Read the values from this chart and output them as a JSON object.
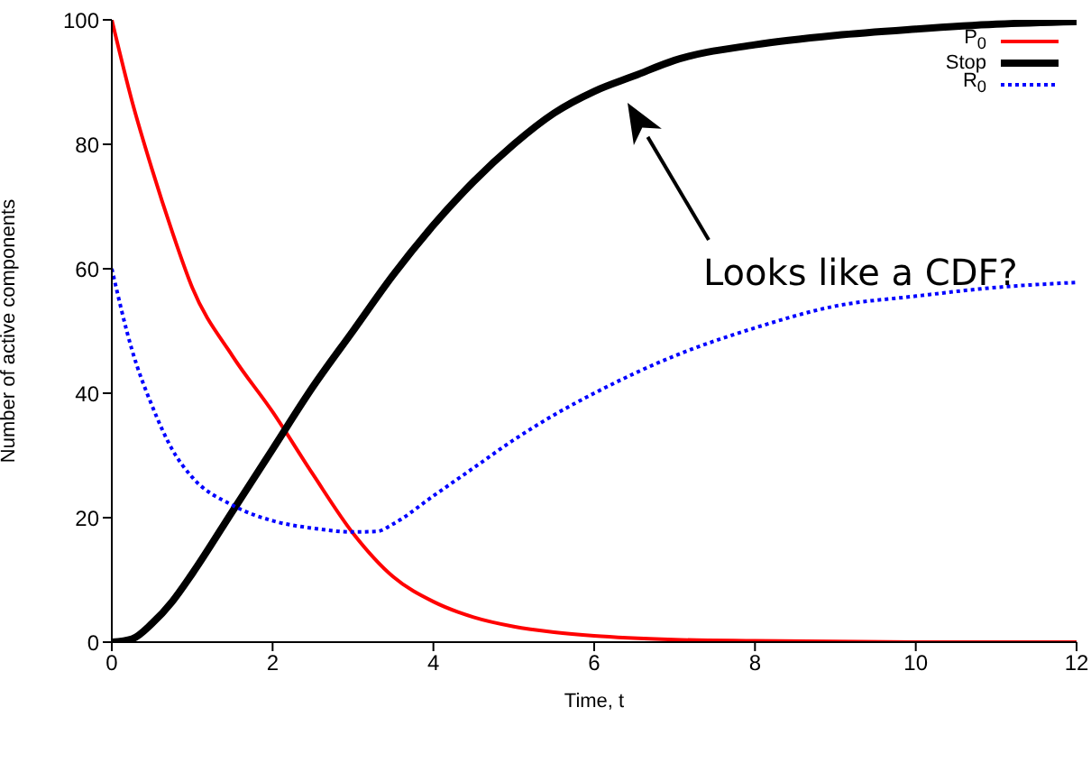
{
  "chart_data": {
    "type": "line",
    "xlabel": "Time, t",
    "ylabel": "Number of active components",
    "xlim": [
      0,
      12
    ],
    "xticks": [
      0,
      2,
      4,
      6,
      8,
      10,
      12
    ],
    "ylim": [
      0,
      100
    ],
    "yticks": [
      0,
      20,
      40,
      60,
      80,
      100
    ],
    "grid": false,
    "legend": "top right",
    "marker": "none",
    "annotations": [
      "Looks like a CDF?"
    ],
    "series": [
      {
        "name": "P$_{0}$",
        "color": "#ff0000",
        "line_style": "solid",
        "x": [
          0,
          0.25,
          0.5,
          0.75,
          1,
          1.5,
          2,
          2.5,
          3,
          3.5,
          4,
          4.5,
          5,
          5.5,
          6,
          7,
          8,
          10,
          12
        ],
        "values": [
          100,
          87,
          76,
          66,
          57,
          46,
          37,
          27,
          17.5,
          10.5,
          6.5,
          4,
          2.5,
          1.6,
          1,
          0.4,
          0.2,
          0,
          0
        ]
      },
      {
        "name": "Stop",
        "color": "#000000",
        "line_style": "solid",
        "x": [
          0,
          0.25,
          0.5,
          0.75,
          1,
          1.5,
          2,
          2.5,
          3,
          3.5,
          4,
          4.5,
          5,
          5.5,
          6,
          6.5,
          7,
          8,
          9,
          10,
          11,
          12
        ],
        "values": [
          0,
          0.5,
          3,
          6.5,
          11,
          21,
          31,
          41,
          50,
          59,
          67,
          74,
          80,
          85,
          88.5,
          91,
          93.5,
          96,
          97.5,
          98.5,
          99.3,
          99.7
        ]
      },
      {
        "name": "R$_{0}$",
        "color": "#0000ff",
        "line_style": "dotted",
        "x": [
          0,
          0.25,
          0.5,
          0.75,
          1,
          1.5,
          2,
          2.5,
          3,
          3.3,
          3.5,
          4,
          4.5,
          5,
          5.5,
          6,
          7,
          8,
          9,
          10,
          11,
          12
        ],
        "values": [
          60,
          47,
          38,
          31,
          26.5,
          22,
          19.5,
          18.3,
          17.7,
          17.8,
          19,
          23.5,
          28,
          32.5,
          36.5,
          40,
          46,
          50.5,
          54,
          55.6,
          57,
          57.8
        ]
      }
    ]
  }
}
